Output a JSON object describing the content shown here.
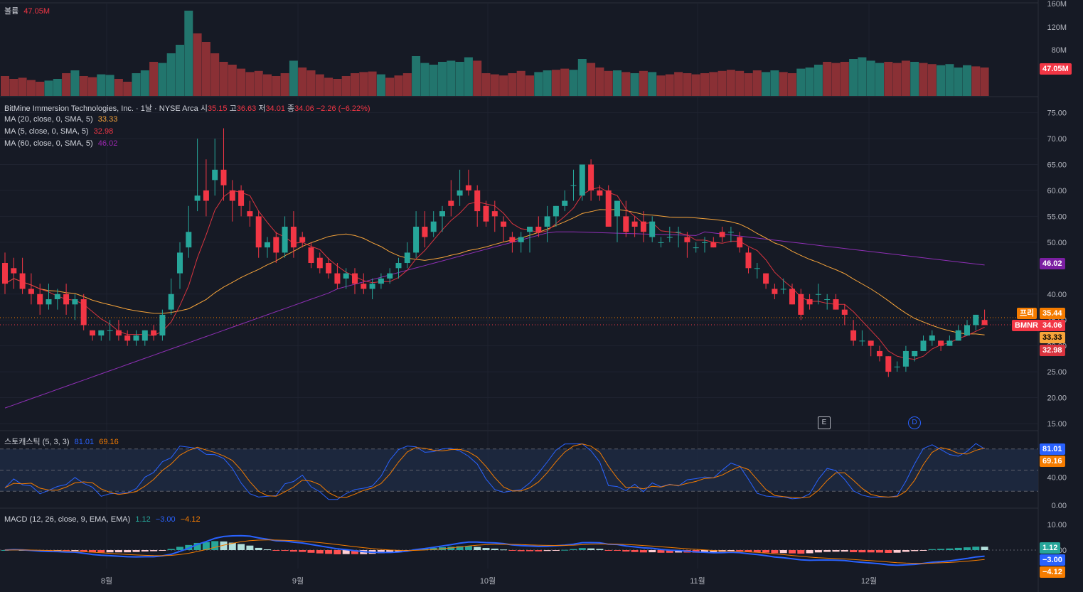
{
  "colors": {
    "up": "#26a69a",
    "down": "#f23645",
    "ma20": "#f7a43a",
    "ma5": "#d9343f",
    "ma60": "#8e2fb5",
    "stochK": "#2962ff",
    "stochD": "#f57c00",
    "macd": "#2962ff",
    "signal": "#f57c00",
    "bg": "#161a25"
  },
  "volume_panel": {
    "label": "볼륨",
    "value": "47.05M"
  },
  "symbol": {
    "name": "BitMine Immersion Technologies, Inc. · 1날 · NYSE Arca",
    "o_lbl": "시",
    "o": "35.15",
    "h_lbl": "고",
    "h": "36.63",
    "l_lbl": "저",
    "l": "34.01",
    "c_lbl": "종",
    "c": "34.06",
    "chg": "−2.26 (−6.22%)"
  },
  "ma_legends": [
    {
      "label": "MA (20, close, 0, SMA, 5)",
      "value": "33.33"
    },
    {
      "label": "MA (5, close, 0, SMA, 5)",
      "value": "32.98"
    },
    {
      "label": "MA (60, close, 0, SMA, 5)",
      "value": "46.02"
    }
  ],
  "stoch_legend": {
    "label": "스토캐스틱 (5, 3, 3)",
    "k": "81.01",
    "d": "69.16"
  },
  "macd_legend": {
    "label": "MACD (12, 26, close, 9, EMA, EMA)",
    "hist": "1.12",
    "macd": "−3.00",
    "signal": "−4.12"
  },
  "badges": {
    "pre_label": "프리",
    "pre": "35.44",
    "sym_label": "BMNR",
    "last": "34.06",
    "ma20": "33.33",
    "ma5": "32.98",
    "ma60": "46.02",
    "vol": "47.05M",
    "k": "81.01",
    "d": "69.16",
    "hist": "1.12",
    "macd": "−3.00",
    "signal": "−4.12"
  },
  "events": [
    "E",
    "D"
  ],
  "chart_data": {
    "type": "candlestick",
    "title": "BitMine Immersion Technologies, Inc.",
    "x_labels": [
      "8월",
      "9월",
      "10월",
      "11월",
      "12월"
    ],
    "price_ticks": [
      75,
      70,
      65,
      60,
      55,
      50,
      40,
      35,
      30,
      25,
      20,
      15
    ],
    "volume_ticks": [
      "160M",
      "120M",
      "80M"
    ],
    "stoch_ticks": [
      40,
      0
    ],
    "macd_ticks": [
      10,
      0
    ],
    "candles": [
      [
        46,
        48,
        40,
        42
      ],
      [
        45,
        47,
        41,
        44
      ],
      [
        44,
        47,
        40,
        41
      ],
      [
        41,
        44,
        38,
        40
      ],
      [
        40,
        42,
        36,
        38
      ],
      [
        38,
        42,
        37,
        39
      ],
      [
        39,
        41,
        37,
        40
      ],
      [
        40,
        42,
        36,
        38
      ],
      [
        38,
        40,
        35,
        39
      ],
      [
        39,
        40,
        33,
        34
      ],
      [
        33,
        33,
        31,
        32
      ],
      [
        32,
        33,
        31,
        33
      ],
      [
        33,
        35,
        31,
        33
      ],
      [
        33,
        35,
        31,
        32
      ],
      [
        32,
        33,
        30,
        31
      ],
      [
        31,
        33,
        30,
        32
      ],
      [
        31,
        33,
        30,
        33
      ],
      [
        33,
        34,
        31,
        32
      ],
      [
        32,
        37,
        31,
        36
      ],
      [
        37,
        43,
        36,
        40
      ],
      [
        44,
        50,
        41,
        48
      ],
      [
        49,
        57,
        47,
        52
      ],
      [
        58,
        70,
        56,
        59
      ],
      [
        60,
        66,
        55,
        58
      ],
      [
        62,
        70,
        59,
        64
      ],
      [
        64,
        72,
        58,
        61
      ],
      [
        60,
        62,
        54,
        58
      ],
      [
        60,
        61,
        55,
        57
      ],
      [
        56,
        58,
        53,
        55
      ],
      [
        55,
        56,
        47,
        49
      ],
      [
        49,
        51,
        47,
        50
      ],
      [
        51,
        52,
        46,
        48
      ],
      [
        48,
        55,
        47,
        53
      ],
      [
        53,
        56,
        47,
        49
      ],
      [
        51,
        52,
        49,
        50
      ],
      [
        49,
        50,
        45,
        46
      ],
      [
        47,
        48,
        44,
        45
      ],
      [
        46,
        47,
        43,
        44
      ],
      [
        44,
        46,
        41,
        42
      ],
      [
        43,
        45,
        41,
        44
      ],
      [
        44,
        45,
        40,
        42
      ],
      [
        42,
        44,
        40,
        41
      ],
      [
        41,
        43,
        39,
        42
      ],
      [
        42,
        44,
        41,
        43
      ],
      [
        43,
        45,
        42,
        44
      ],
      [
        45,
        47,
        43,
        46
      ],
      [
        46,
        50,
        45,
        48
      ],
      [
        48,
        56,
        47,
        53
      ],
      [
        53,
        56,
        49,
        51
      ],
      [
        52,
        56,
        51,
        54
      ],
      [
        55,
        57,
        52,
        56
      ],
      [
        58,
        62,
        55,
        57
      ],
      [
        59,
        64,
        57,
        60
      ],
      [
        61,
        64,
        59,
        60
      ],
      [
        60,
        61,
        53,
        56
      ],
      [
        57,
        58,
        53,
        54
      ],
      [
        56,
        58,
        52,
        55
      ],
      [
        54,
        55,
        50,
        53
      ],
      [
        51,
        52,
        48,
        50
      ],
      [
        50,
        52,
        48,
        51
      ],
      [
        52,
        53,
        48,
        53
      ],
      [
        53,
        55,
        51,
        52
      ],
      [
        53,
        57,
        50,
        55
      ],
      [
        55,
        57,
        53,
        57
      ],
      [
        57,
        60,
        56,
        58
      ],
      [
        61,
        64,
        58,
        61
      ],
      [
        59,
        65,
        58,
        65
      ],
      [
        65,
        66,
        58,
        60
      ],
      [
        60,
        61,
        58,
        59
      ],
      [
        60,
        61,
        53,
        53
      ],
      [
        55,
        58,
        50,
        58
      ],
      [
        55,
        58,
        51,
        52
      ],
      [
        54,
        55,
        51,
        53
      ],
      [
        54,
        56,
        50,
        52
      ],
      [
        51,
        55,
        50,
        54
      ],
      [
        50,
        51,
        49,
        50
      ],
      [
        51,
        53,
        50,
        51
      ],
      [
        52,
        53,
        49,
        52
      ],
      [
        51,
        52,
        47,
        50
      ],
      [
        49,
        50,
        48,
        49
      ],
      [
        50,
        51,
        48,
        50
      ],
      [
        50,
        51,
        49,
        49
      ],
      [
        52,
        53,
        50,
        51
      ],
      [
        52,
        53,
        50,
        52
      ],
      [
        51,
        52,
        48,
        49
      ],
      [
        48,
        49,
        44,
        45
      ],
      [
        45,
        46,
        43,
        45
      ],
      [
        44,
        44,
        41,
        42
      ],
      [
        41,
        42,
        39,
        40
      ],
      [
        41,
        43,
        40,
        41
      ],
      [
        41,
        42,
        38,
        38
      ],
      [
        40,
        41,
        35,
        36
      ],
      [
        39,
        40,
        37,
        38
      ],
      [
        40,
        42,
        38,
        40
      ],
      [
        39,
        40,
        37,
        39
      ],
      [
        39,
        40,
        37,
        37
      ],
      [
        37,
        38,
        34,
        36
      ],
      [
        33,
        35,
        30,
        31
      ],
      [
        31,
        33,
        30,
        31
      ],
      [
        31,
        31,
        28,
        30
      ],
      [
        29,
        30,
        27,
        28
      ],
      [
        28,
        28,
        24,
        25
      ],
      [
        26,
        27,
        25,
        26
      ],
      [
        26,
        30,
        25,
        29
      ],
      [
        28,
        29,
        27,
        29
      ],
      [
        29,
        32,
        29,
        31
      ],
      [
        31,
        33,
        30,
        32
      ],
      [
        31,
        31,
        29,
        30
      ],
      [
        30,
        32,
        30,
        31
      ],
      [
        31,
        34,
        31,
        33
      ],
      [
        32,
        35,
        32,
        34
      ],
      [
        34,
        36,
        33,
        36
      ],
      [
        35,
        37,
        34,
        34
      ]
    ],
    "volume": [
      [
        35,
        0
      ],
      [
        30,
        0
      ],
      [
        32,
        0
      ],
      [
        28,
        0
      ],
      [
        25,
        0
      ],
      [
        27,
        1
      ],
      [
        30,
        1
      ],
      [
        40,
        0
      ],
      [
        45,
        1
      ],
      [
        35,
        0
      ],
      [
        33,
        0
      ],
      [
        38,
        1
      ],
      [
        37,
        1
      ],
      [
        30,
        0
      ],
      [
        25,
        0
      ],
      [
        40,
        1
      ],
      [
        45,
        1
      ],
      [
        60,
        0
      ],
      [
        58,
        1
      ],
      [
        75,
        1
      ],
      [
        90,
        1
      ],
      [
        150,
        1
      ],
      [
        110,
        0
      ],
      [
        95,
        0
      ],
      [
        75,
        0
      ],
      [
        60,
        0
      ],
      [
        55,
        0
      ],
      [
        48,
        0
      ],
      [
        42,
        0
      ],
      [
        44,
        0
      ],
      [
        38,
        0
      ],
      [
        35,
        0
      ],
      [
        40,
        0
      ],
      [
        62,
        1
      ],
      [
        50,
        0
      ],
      [
        45,
        0
      ],
      [
        38,
        0
      ],
      [
        32,
        0
      ],
      [
        30,
        0
      ],
      [
        35,
        0
      ],
      [
        40,
        0
      ],
      [
        42,
        0
      ],
      [
        43,
        0
      ],
      [
        38,
        1
      ],
      [
        32,
        0
      ],
      [
        36,
        0
      ],
      [
        40,
        0
      ],
      [
        70,
        1
      ],
      [
        58,
        1
      ],
      [
        55,
        1
      ],
      [
        60,
        1
      ],
      [
        62,
        1
      ],
      [
        60,
        1
      ],
      [
        68,
        1
      ],
      [
        62,
        0
      ],
      [
        40,
        0
      ],
      [
        38,
        0
      ],
      [
        36,
        0
      ],
      [
        40,
        0
      ],
      [
        44,
        0
      ],
      [
        36,
        0
      ],
      [
        42,
        1
      ],
      [
        45,
        1
      ],
      [
        46,
        0
      ],
      [
        48,
        0
      ],
      [
        46,
        1
      ],
      [
        65,
        1
      ],
      [
        58,
        0
      ],
      [
        50,
        0
      ],
      [
        44,
        0
      ],
      [
        45,
        1
      ],
      [
        42,
        0
      ],
      [
        40,
        1
      ],
      [
        44,
        0
      ],
      [
        42,
        1
      ],
      [
        36,
        0
      ],
      [
        38,
        0
      ],
      [
        42,
        0
      ],
      [
        40,
        0
      ],
      [
        38,
        0
      ],
      [
        40,
        0
      ],
      [
        42,
        0
      ],
      [
        44,
        0
      ],
      [
        46,
        0
      ],
      [
        44,
        0
      ],
      [
        40,
        0
      ],
      [
        45,
        0
      ],
      [
        42,
        1
      ],
      [
        45,
        1
      ],
      [
        42,
        0
      ],
      [
        40,
        0
      ],
      [
        48,
        1
      ],
      [
        50,
        1
      ],
      [
        55,
        1
      ],
      [
        60,
        0
      ],
      [
        58,
        0
      ],
      [
        60,
        0
      ],
      [
        65,
        1
      ],
      [
        68,
        1
      ],
      [
        62,
        1
      ],
      [
        58,
        1
      ],
      [
        60,
        0
      ],
      [
        58,
        0
      ],
      [
        62,
        0
      ],
      [
        60,
        1
      ],
      [
        58,
        0
      ],
      [
        56,
        0
      ],
      [
        54,
        1
      ],
      [
        56,
        1
      ],
      [
        50,
        1
      ],
      [
        54,
        1
      ],
      [
        52,
        0
      ],
      [
        50,
        0
      ]
    ]
  }
}
